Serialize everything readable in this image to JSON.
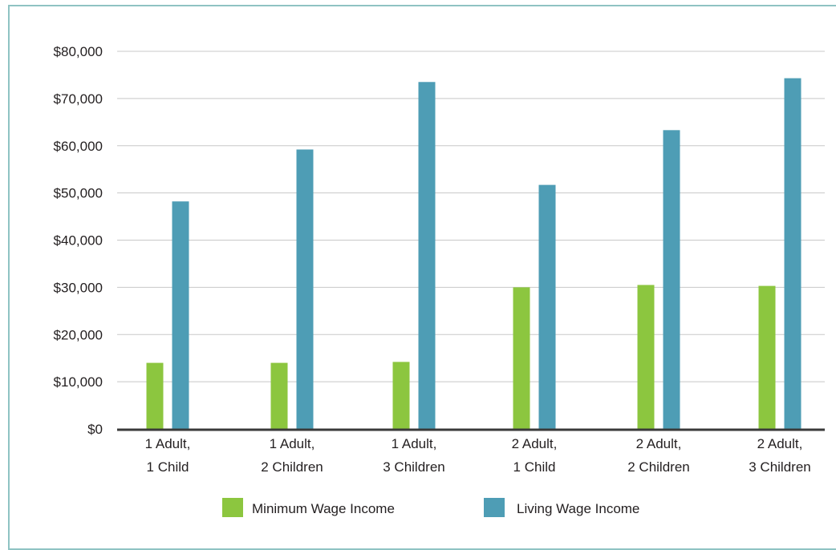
{
  "chart_data": {
    "type": "bar",
    "categories": [
      [
        "1 Adult,",
        "1 Child"
      ],
      [
        "1 Adult,",
        "2 Children"
      ],
      [
        "1 Adult,",
        "3 Children"
      ],
      [
        "2 Adult,",
        "1 Child"
      ],
      [
        "2 Adult,",
        "2 Children"
      ],
      [
        "2 Adult,",
        "3 Children"
      ]
    ],
    "series": [
      {
        "name": "Minimum Wage Income",
        "color": "#8cc63f",
        "values": [
          14000,
          14000,
          14200,
          30000,
          30500,
          30300
        ]
      },
      {
        "name": "Living Wage Income",
        "color": "#4e9db5",
        "values": [
          48200,
          59200,
          73500,
          51700,
          63300,
          74300
        ]
      }
    ],
    "yticks": [
      "$0",
      "$10,000",
      "$20,000",
      "$30,000",
      "$40,000",
      "$50,000",
      "$60,000",
      "$70,000",
      "$80,000"
    ],
    "ylim": [
      0,
      80000
    ],
    "grid": true,
    "legend": "bottom"
  }
}
